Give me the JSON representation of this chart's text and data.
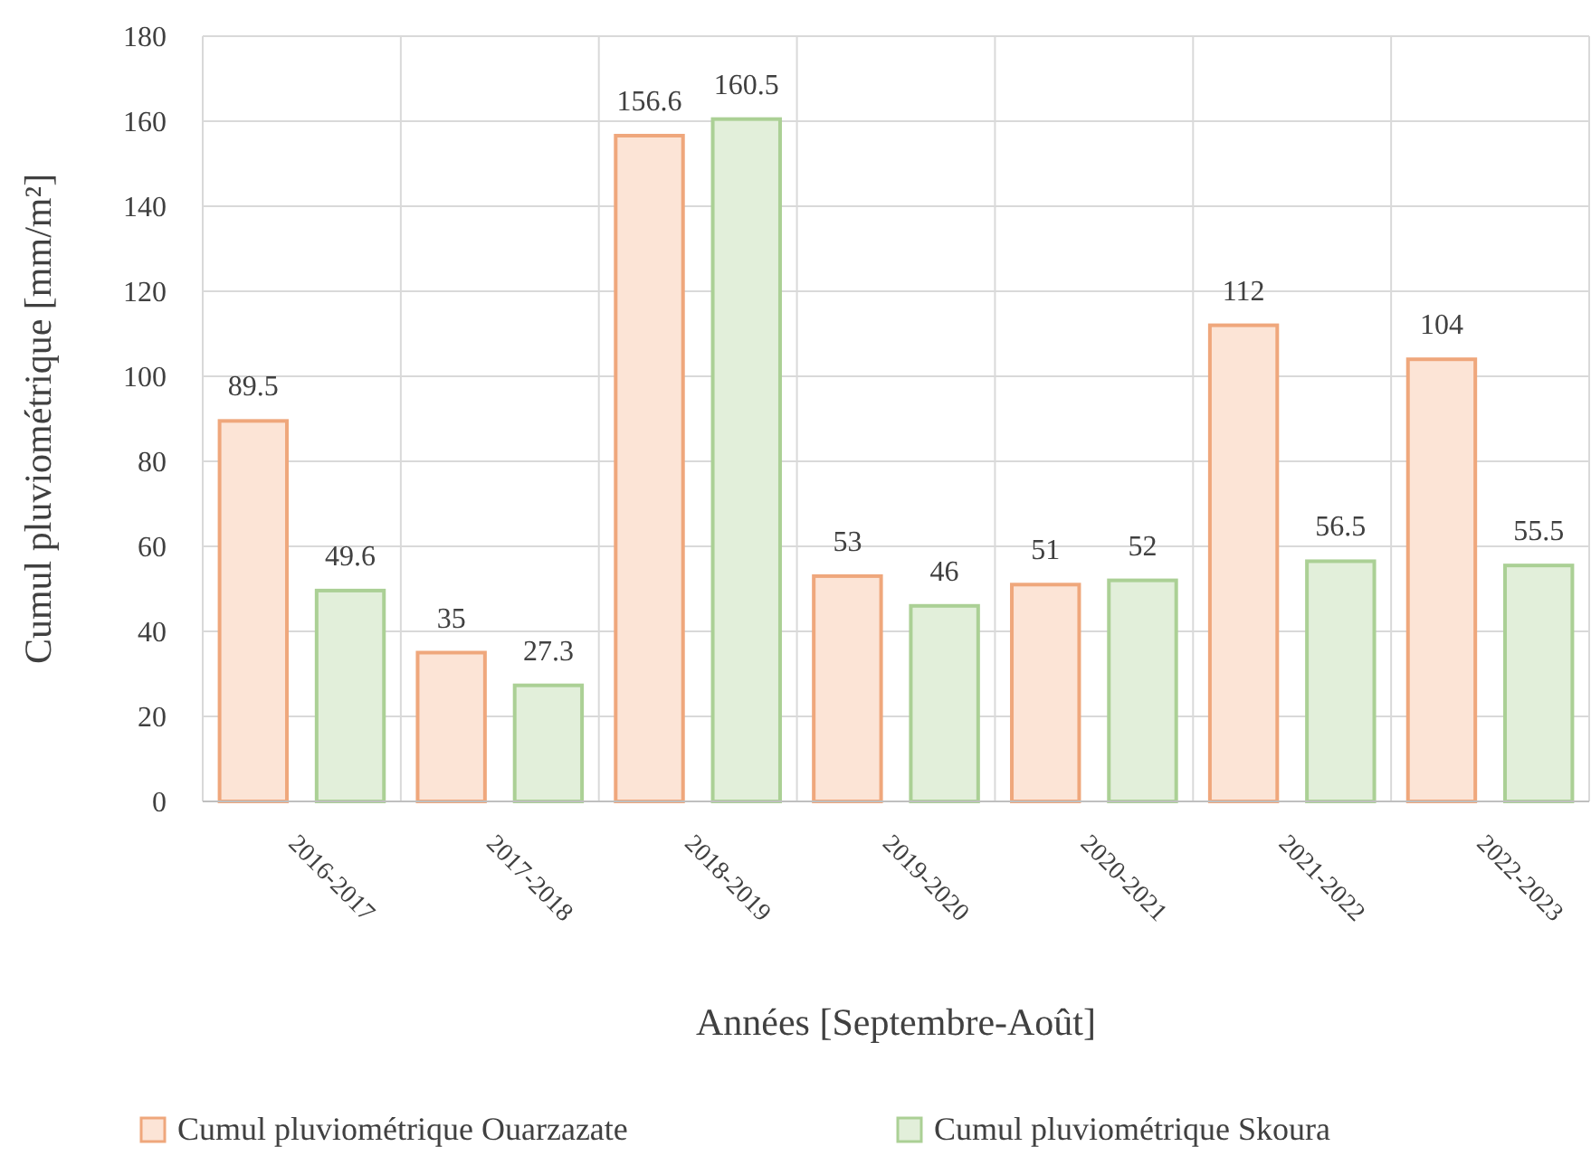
{
  "chart_data": {
    "type": "bar",
    "xlabel": "Années [Septembre-Août]",
    "ylabel": "Cumul pluviométrique [mm/m²]",
    "categories": [
      "2016-2017",
      "2017-2018",
      "2018-2019",
      "2019-2020",
      "2020-2021",
      "2021-2022",
      "2022-2023"
    ],
    "series": [
      {
        "name": "Cumul pluviométrique Ouarzazate",
        "color": "#fce4d6",
        "values": [
          89.5,
          35,
          156.6,
          53,
          51,
          112,
          104
        ]
      },
      {
        "name": "Cumul pluviométrique Skoura",
        "color": "#e2efda",
        "values": [
          49.6,
          27.3,
          160.5,
          46,
          52,
          56.5,
          55.5
        ]
      }
    ],
    "ylim": [
      0,
      180
    ],
    "yticks": [
      0,
      20,
      40,
      60,
      80,
      100,
      120,
      140,
      160,
      180
    ],
    "grid": true,
    "legend": "bottom",
    "data_labels": true
  }
}
